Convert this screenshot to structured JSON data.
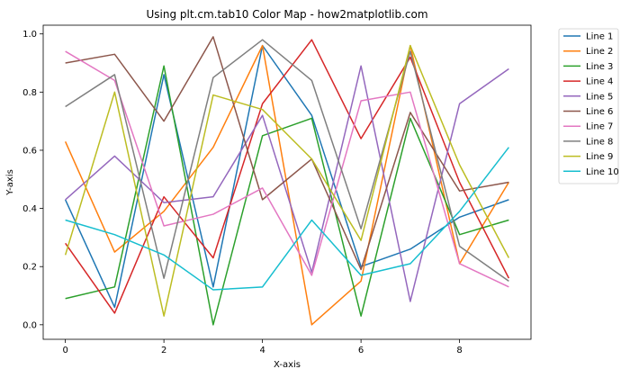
{
  "chart_data": {
    "type": "line",
    "title": "Using plt.cm.tab10 Color Map - how2matplotlib.com",
    "xlabel": "X-axis",
    "ylabel": "Y-axis",
    "xlim": [
      -0.45,
      9.45
    ],
    "ylim": [
      -0.05,
      1.03
    ],
    "x": [
      0,
      1,
      2,
      3,
      4,
      5,
      6,
      7,
      8,
      9
    ],
    "xticks": [
      0,
      2,
      4,
      6,
      8
    ],
    "xtick_labels": [
      "0",
      "2",
      "4",
      "6",
      "8"
    ],
    "yticks": [
      0.0,
      0.2,
      0.4,
      0.6,
      0.8,
      1.0
    ],
    "ytick_labels": [
      "0.0",
      "0.2",
      "0.4",
      "0.6",
      "0.8",
      "1.0"
    ],
    "grid": false,
    "legend_position": "outside-top-right",
    "series": [
      {
        "name": "Line 1",
        "color": "#1f77b4",
        "values": [
          0.43,
          0.06,
          0.86,
          0.13,
          0.96,
          0.72,
          0.2,
          0.26,
          0.37,
          0.43
        ]
      },
      {
        "name": "Line 2",
        "color": "#ff7f0e",
        "values": [
          0.63,
          0.25,
          0.39,
          0.61,
          0.96,
          0.0,
          0.15,
          0.96,
          0.21,
          0.49
        ]
      },
      {
        "name": "Line 3",
        "color": "#2ca02c",
        "values": [
          0.09,
          0.13,
          0.89,
          0.0,
          0.65,
          0.71,
          0.03,
          0.71,
          0.31,
          0.36
        ]
      },
      {
        "name": "Line 4",
        "color": "#d62728",
        "values": [
          0.28,
          0.04,
          0.44,
          0.23,
          0.76,
          0.98,
          0.64,
          0.92,
          0.49,
          0.16
        ]
      },
      {
        "name": "Line 5",
        "color": "#9467bd",
        "values": [
          0.43,
          0.58,
          0.42,
          0.44,
          0.72,
          0.18,
          0.89,
          0.08,
          0.76,
          0.88
        ]
      },
      {
        "name": "Line 6",
        "color": "#8c564b",
        "values": [
          0.9,
          0.93,
          0.7,
          0.99,
          0.43,
          0.57,
          0.19,
          0.73,
          0.46,
          0.49
        ]
      },
      {
        "name": "Line 7",
        "color": "#e377c2",
        "values": [
          0.94,
          0.84,
          0.34,
          0.38,
          0.47,
          0.17,
          0.77,
          0.8,
          0.21,
          0.13
        ]
      },
      {
        "name": "Line 8",
        "color": "#7f7f7f",
        "values": [
          0.75,
          0.86,
          0.16,
          0.85,
          0.98,
          0.84,
          0.33,
          0.94,
          0.27,
          0.15
        ]
      },
      {
        "name": "Line 9",
        "color": "#bcbd22",
        "values": [
          0.24,
          0.8,
          0.03,
          0.79,
          0.74,
          0.57,
          0.29,
          0.96,
          0.55,
          0.23
        ]
      },
      {
        "name": "Line 10",
        "color": "#17becf",
        "values": [
          0.36,
          0.31,
          0.24,
          0.12,
          0.13,
          0.36,
          0.17,
          0.21,
          0.39,
          0.61
        ]
      }
    ]
  }
}
